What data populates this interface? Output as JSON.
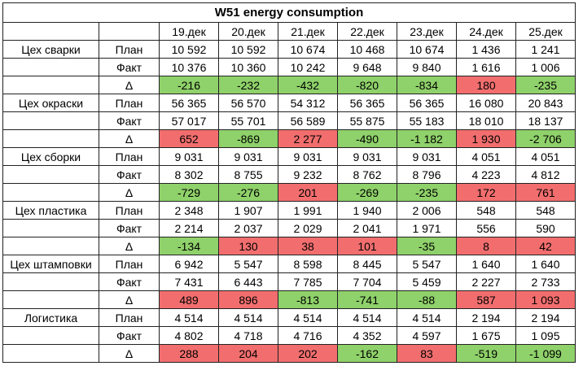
{
  "title": "W51 energy consumption",
  "dates": [
    "19.дек",
    "20.дек",
    "21.дек",
    "22.дек",
    "23.дек",
    "24.дек",
    "25.дек"
  ],
  "labels": {
    "plan": "План",
    "fact": "Факт",
    "delta": "Δ"
  },
  "colors": {
    "good": "#8fd16a",
    "bad": "#f26e6e"
  },
  "shops": [
    {
      "name": "Цех сварки",
      "plan": [
        "10 592",
        "10 592",
        "10 674",
        "10 468",
        "10 674",
        "1 436",
        "1 241"
      ],
      "fact": [
        "10 376",
        "10 360",
        "10 242",
        "9 648",
        "9 840",
        "1 616",
        "1 006"
      ],
      "delta": [
        "-216",
        "-232",
        "-432",
        "-820",
        "-834",
        "180",
        "-235"
      ],
      "delta_status": [
        "good",
        "good",
        "good",
        "good",
        "good",
        "bad",
        "good"
      ]
    },
    {
      "name": "Цех окраски",
      "plan": [
        "56 365",
        "56 570",
        "54 312",
        "56 365",
        "56 365",
        "16 080",
        "20 843"
      ],
      "fact": [
        "57 017",
        "55 701",
        "56 589",
        "55 875",
        "55 183",
        "18 010",
        "18 137"
      ],
      "delta": [
        "652",
        "-869",
        "2 277",
        "-490",
        "-1 182",
        "1 930",
        "-2 706"
      ],
      "delta_status": [
        "bad",
        "good",
        "bad",
        "good",
        "good",
        "bad",
        "good"
      ]
    },
    {
      "name": "Цех сборки",
      "plan": [
        "9 031",
        "9 031",
        "9 031",
        "9 031",
        "9 031",
        "4 051",
        "4 051"
      ],
      "fact": [
        "8 302",
        "8 755",
        "9 232",
        "8 762",
        "8 796",
        "4 223",
        "4 812"
      ],
      "delta": [
        "-729",
        "-276",
        "201",
        "-269",
        "-235",
        "172",
        "761"
      ],
      "delta_status": [
        "good",
        "good",
        "bad",
        "good",
        "good",
        "bad",
        "bad"
      ]
    },
    {
      "name": "Цех пластика",
      "plan": [
        "2 348",
        "1 907",
        "1 991",
        "1 940",
        "2 006",
        "548",
        "548"
      ],
      "fact": [
        "2 214",
        "2 037",
        "2 029",
        "2 041",
        "1 971",
        "556",
        "590"
      ],
      "delta": [
        "-134",
        "130",
        "38",
        "101",
        "-35",
        "8",
        "42"
      ],
      "delta_status": [
        "good",
        "bad",
        "bad",
        "bad",
        "good",
        "bad",
        "bad"
      ]
    },
    {
      "name": "Цех штамповки",
      "plan": [
        "6 942",
        "5 547",
        "8 598",
        "8 445",
        "5 547",
        "1 640",
        "1 640"
      ],
      "fact": [
        "7 431",
        "6 443",
        "7 785",
        "7 704",
        "5 459",
        "2 227",
        "2 733"
      ],
      "delta": [
        "489",
        "896",
        "-813",
        "-741",
        "-88",
        "587",
        "1 093"
      ],
      "delta_status": [
        "bad",
        "bad",
        "good",
        "good",
        "good",
        "bad",
        "bad"
      ]
    },
    {
      "name": "Логистика",
      "plan": [
        "4 514",
        "4 514",
        "4 514",
        "4 514",
        "4 514",
        "2 194",
        "2 194"
      ],
      "fact": [
        "4 802",
        "4 718",
        "4 716",
        "4 352",
        "4 597",
        "1 675",
        "1 095"
      ],
      "delta": [
        "288",
        "204",
        "202",
        "-162",
        "83",
        "-519",
        "-1 099"
      ],
      "delta_status": [
        "bad",
        "bad",
        "bad",
        "good",
        "bad",
        "good",
        "good"
      ]
    }
  ]
}
